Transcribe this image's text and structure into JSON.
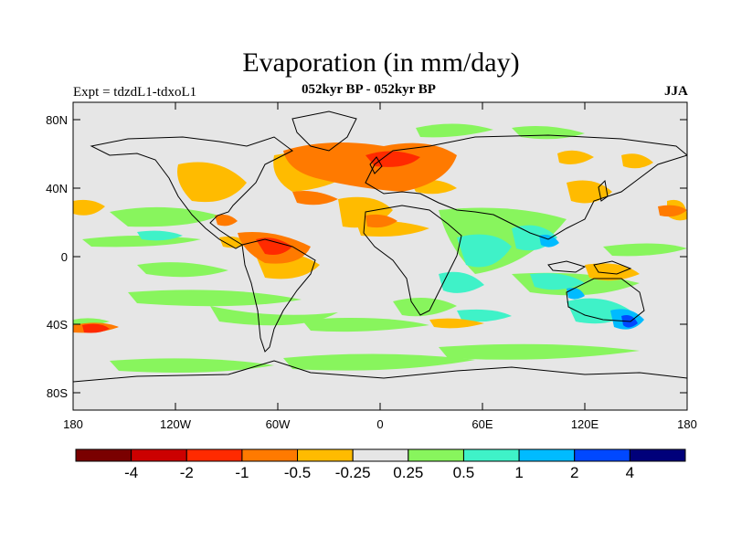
{
  "header": {
    "title": "Evaporation (in mm/day)",
    "subtitle": "052kyr BP - 052kyr BP",
    "expt": "Expt = tdzdL1-tdxoL1",
    "season": "JJA"
  },
  "map": {
    "projection": "cylindrical-equidistant",
    "background_color": "#e6e6e6",
    "lat_ticks": [
      "80N",
      "40N",
      "0",
      "40S",
      "80S"
    ],
    "lon_ticks": [
      "180",
      "120W",
      "60W",
      "0",
      "60E",
      "120E",
      "180"
    ]
  },
  "colorbar": {
    "colors": [
      "#7a0000",
      "#cc0000",
      "#ff2a00",
      "#ff7a00",
      "#ffbb00",
      "#e6e6e6",
      "#88f55d",
      "#3ff2c8",
      "#00bbff",
      "#0048ff",
      "#00007a"
    ],
    "labels": [
      "-4",
      "-2",
      "-1",
      "-0.5",
      "-0.25",
      "0.25",
      "0.5",
      "1",
      "2",
      "4"
    ]
  },
  "colors": {
    "strong_negative": "#ff2a00",
    "negative": "#ff7a00",
    "weak_negative": "#ffbb00",
    "weak_positive": "#88f55d",
    "positive": "#3ff2c8",
    "strong_positive": "#00bbff",
    "stronger_positive": "#0048ff"
  }
}
